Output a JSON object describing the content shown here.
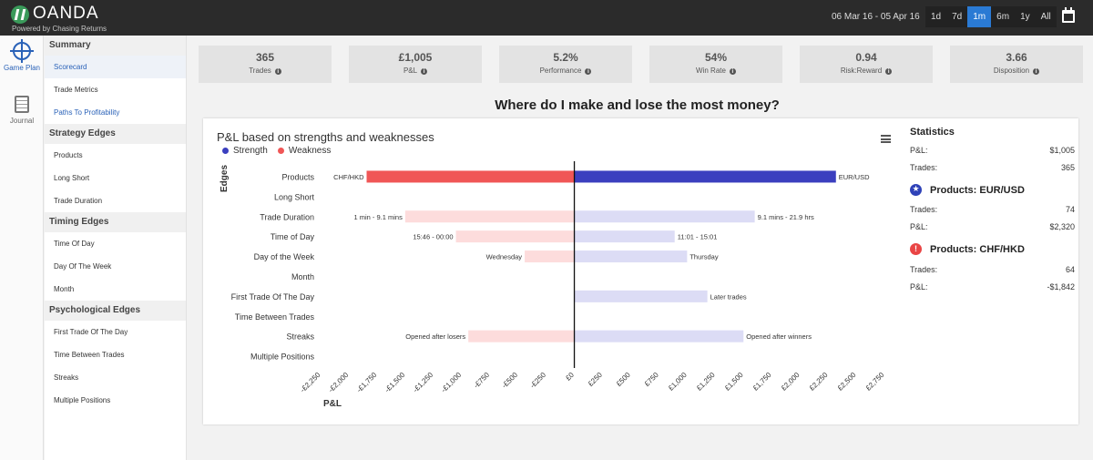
{
  "brand": {
    "name": "OANDA",
    "tagline": "Powered by Chasing Returns"
  },
  "header": {
    "date_range": "06 Mar 16  -  05 Apr 16",
    "ranges": [
      "1d",
      "7d",
      "1m",
      "6m",
      "1y",
      "All"
    ],
    "active_range": "1m"
  },
  "rail": {
    "items": [
      {
        "label": "Game Plan"
      },
      {
        "label": "Journal"
      }
    ]
  },
  "menu": {
    "summary": {
      "label": "Summary",
      "items": [
        "Scorecard",
        "Trade Metrics",
        "Paths To Profitability"
      ]
    },
    "strategy": {
      "label": "Strategy Edges",
      "items": [
        "Products",
        "Long Short",
        "Trade Duration"
      ]
    },
    "timing": {
      "label": "Timing Edges",
      "items": [
        "Time Of Day",
        "Day Of The Week",
        "Month"
      ]
    },
    "psych": {
      "label": "Psychological Edges",
      "items": [
        "First Trade Of The Day",
        "Time Between Trades",
        "Streaks",
        "Multiple Positions"
      ]
    }
  },
  "cards": [
    {
      "value": "365",
      "label": "Trades"
    },
    {
      "value": "£1,005",
      "label": "P&L"
    },
    {
      "value": "5.2%",
      "label": "Performance"
    },
    {
      "value": "54%",
      "label": "Win Rate"
    },
    {
      "value": "0.94",
      "label": "Risk:Reward"
    },
    {
      "value": "3.66",
      "label": "Disposition"
    }
  ],
  "question": "Where do I make and lose the most money?",
  "chart_title": "P&L based on strengths and weaknesses",
  "chart_data": {
    "type": "bar",
    "orientation": "horizontal",
    "title": "P&L based on strengths and weaknesses",
    "xlabel": "P&L",
    "ylabel": "Edges",
    "xlim": [
      -2250,
      2750
    ],
    "x_ticks": [
      -2250,
      -2000,
      -1750,
      -1500,
      -1250,
      -1000,
      -750,
      -500,
      -250,
      0,
      250,
      500,
      750,
      1000,
      1250,
      1500,
      1750,
      2000,
      2250,
      2500,
      2750
    ],
    "x_tick_labels": [
      "-£2,250",
      "-£2,000",
      "-£1,750",
      "-£1,500",
      "-£1,250",
      "-£1,000",
      "-£750",
      "-£500",
      "-£250",
      "£0",
      "£250",
      "£500",
      "£750",
      "£1,000",
      "£1,250",
      "£1,500",
      "£1,750",
      "£2,000",
      "£2,250",
      "£2,500",
      "£2,750"
    ],
    "legend": [
      {
        "name": "Strength",
        "color": "#3b3fbf"
      },
      {
        "name": "Weakness",
        "color": "#f05656"
      }
    ],
    "categories": [
      "Products",
      "Long Short",
      "Trade Duration",
      "Time of Day",
      "Day of the Week",
      "Month",
      "First Trade Of The Day",
      "Time Between Trades",
      "Streaks",
      "Multiple Positions"
    ],
    "series": [
      {
        "name": "Weakness",
        "values": [
          -1842,
          null,
          -1500,
          -1050,
          -440,
          null,
          null,
          null,
          -940,
          null
        ],
        "labels": [
          "CHF/HKD",
          "",
          "1 min - 9.1 mins",
          "15:46 - 00:00",
          "Wednesday",
          "",
          "",
          "",
          "Opened after losers",
          ""
        ]
      },
      {
        "name": "Strength",
        "values": [
          2320,
          null,
          1600,
          890,
          1000,
          null,
          1180,
          null,
          1500,
          null
        ],
        "labels": [
          "EUR/USD",
          "",
          "9.1 mins - 21.9 hrs",
          "11:01 - 15:01",
          "Thursday",
          "",
          "Later trades",
          "",
          "Opened after winners",
          ""
        ]
      }
    ],
    "highlight": [
      true,
      false,
      false,
      false,
      false,
      false,
      false,
      false,
      false,
      false
    ],
    "colors": {
      "strength_strong": "#3b3fbf",
      "strength_light": "#dcdcf5",
      "weakness_strong": "#f05656",
      "weakness_light": "#fddcdc"
    }
  },
  "stats": {
    "title": "Statistics",
    "overall": [
      {
        "label": "P&L:",
        "value": "$1,005"
      },
      {
        "label": "Trades:",
        "value": "365"
      }
    ],
    "best": {
      "title": "Products: EUR/USD",
      "rows": [
        {
          "label": "Trades:",
          "value": "74"
        },
        {
          "label": "P&L:",
          "value": "$2,320"
        }
      ]
    },
    "worst": {
      "title": "Products: CHF/HKD",
      "rows": [
        {
          "label": "Trades:",
          "value": "64"
        },
        {
          "label": "P&L:",
          "value": "-$1,842"
        }
      ]
    }
  },
  "icons": [
    "gameplan-icon",
    "journal-icon",
    "info-icon",
    "calendar-icon",
    "menu-icon",
    "star-icon",
    "alert-icon"
  ]
}
